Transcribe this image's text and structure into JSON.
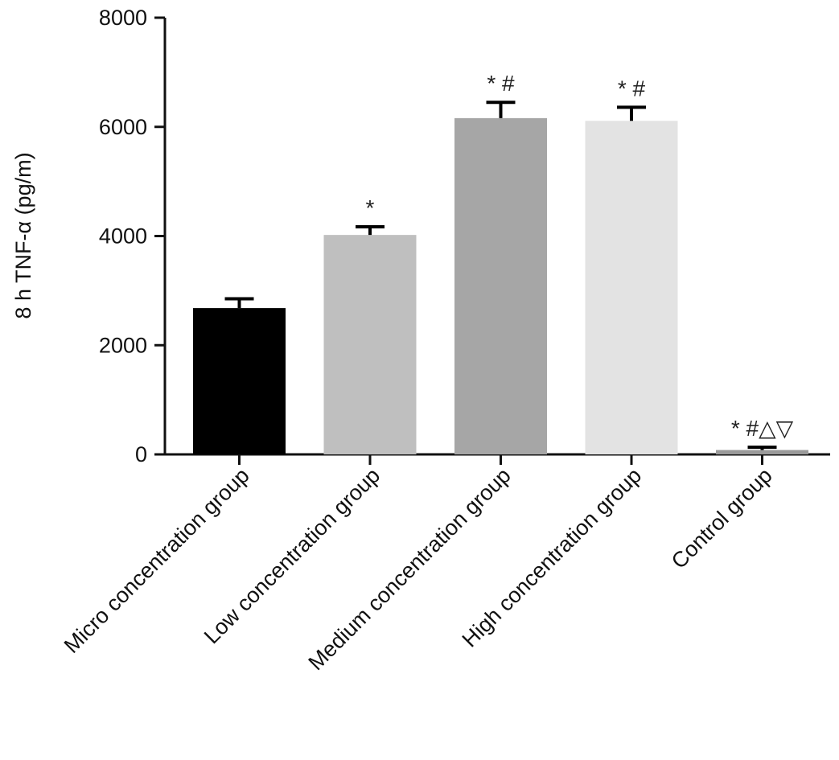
{
  "chart_data": {
    "type": "bar",
    "title": "",
    "xlabel": "",
    "ylabel": "8 h TNF-α (pg/m)",
    "ylim": [
      0,
      8000
    ],
    "yticks": [
      0,
      2000,
      4000,
      6000,
      8000
    ],
    "ytick_labels": [
      "0",
      "2000",
      "4000",
      "6000",
      "8000"
    ],
    "grid": false,
    "categories": [
      "Micro concentration group",
      "Low concentration group",
      "Medium concentration group",
      "High concentration group",
      "Control group"
    ],
    "values": [
      2680,
      4020,
      6160,
      6110,
      80
    ],
    "errors": [
      170,
      150,
      290,
      250,
      50
    ],
    "annotations": [
      "",
      "*",
      "* #",
      "* #",
      "* #△▽"
    ],
    "colors": [
      "#000000",
      "#bfbfbf",
      "#a6a6a6",
      "#e3e3e3",
      "#9a9a9a"
    ]
  }
}
